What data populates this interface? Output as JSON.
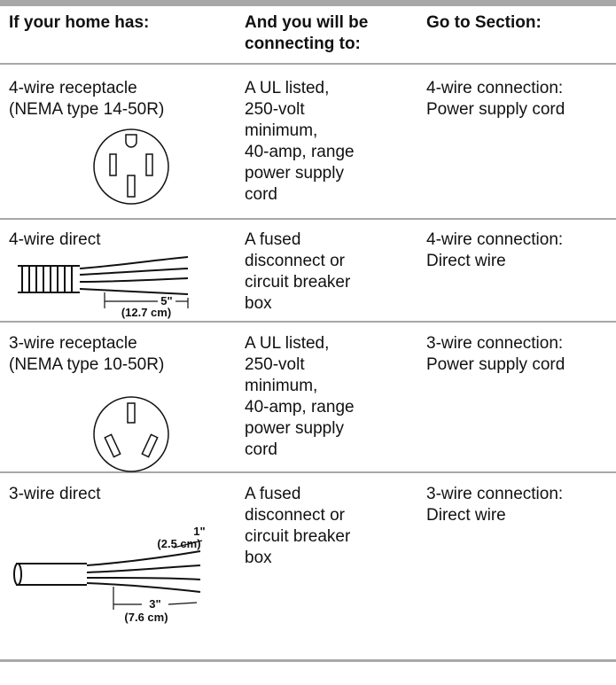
{
  "table": {
    "headers": [
      [
        "If your home has:"
      ],
      [
        "And you will be",
        "connecting to:"
      ],
      [
        "Go to Section:"
      ]
    ],
    "rows": [
      {
        "cells": [
          [
            "4-wire receptacle",
            "(NEMA type 14-50R)"
          ],
          [
            "A UL listed,",
            "250-volt",
            "minimum,",
            "40-amp, range",
            "power supply",
            "cord"
          ],
          [
            "4-wire connection:",
            "Power supply cord"
          ]
        ]
      },
      {
        "cells": [
          [
            "4-wire direct"
          ],
          [
            "A fused",
            "disconnect or",
            "circuit breaker",
            "box"
          ],
          [
            "4-wire connection:",
            "Direct wire"
          ]
        ],
        "figure_labels": [
          "5\"",
          "(12.7 cm)"
        ]
      },
      {
        "cells": [
          [
            "3-wire receptacle",
            "(NEMA type 10-50R)"
          ],
          [
            "A UL listed,",
            "250-volt",
            "minimum,",
            "40-amp, range",
            "power supply",
            "cord"
          ],
          [
            "3-wire connection:",
            "Power supply cord"
          ]
        ]
      },
      {
        "cells": [
          [
            "3-wire direct"
          ],
          [
            "A fused",
            "disconnect or",
            "circuit breaker",
            "box"
          ],
          [
            "3-wire connection:",
            "Direct wire"
          ]
        ],
        "figure_labels": [
          "1\"",
          "(2.5 cm)",
          "3\"",
          "(7.6 cm)"
        ]
      }
    ]
  }
}
